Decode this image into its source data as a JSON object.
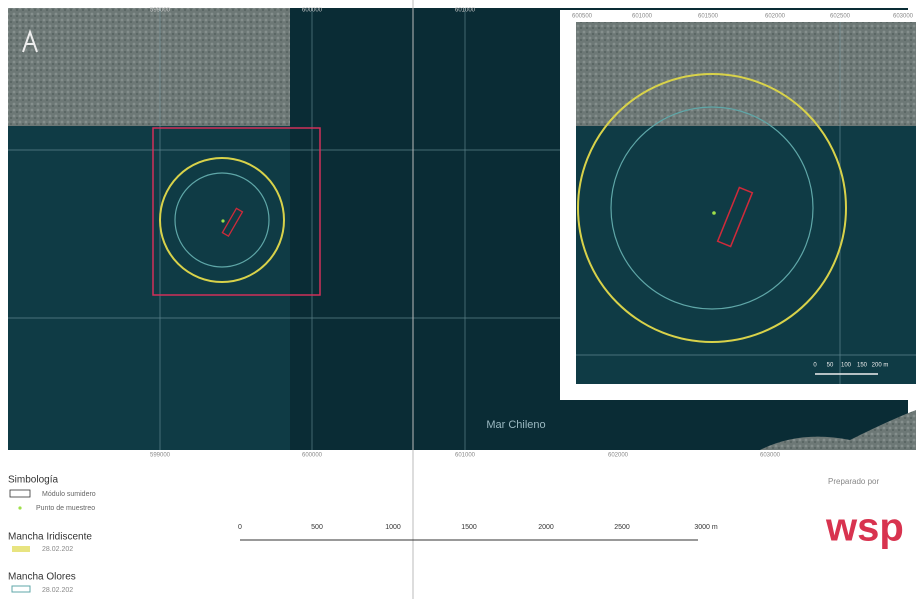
{
  "map": {
    "top_coords": [
      "599000",
      "600000",
      "601000"
    ],
    "bottom_coords": [
      "599000",
      "600000",
      "601000",
      "602000",
      "603000"
    ],
    "sea_label": "Mar Chileno",
    "inset_coords": [
      "600500",
      "601000",
      "601500",
      "602000",
      "602500",
      "603000"
    ],
    "inset_scale": [
      "0",
      "50",
      "100",
      "150",
      "200 m"
    ]
  },
  "legend": {
    "title": "Simbología",
    "items": [
      "Módulo sumidero",
      "Punto de muestreo"
    ],
    "groups": [
      {
        "title": "Mancha Iridiscente",
        "date": "28.02.202"
      },
      {
        "title": "Mancha Olores",
        "date": "28.02.202"
      }
    ]
  },
  "scale_bar": [
    "0",
    "500",
    "1000",
    "1500",
    "2000",
    "2500",
    "3000 m"
  ],
  "prepared_by": "Preparado por",
  "logo": "wsp"
}
